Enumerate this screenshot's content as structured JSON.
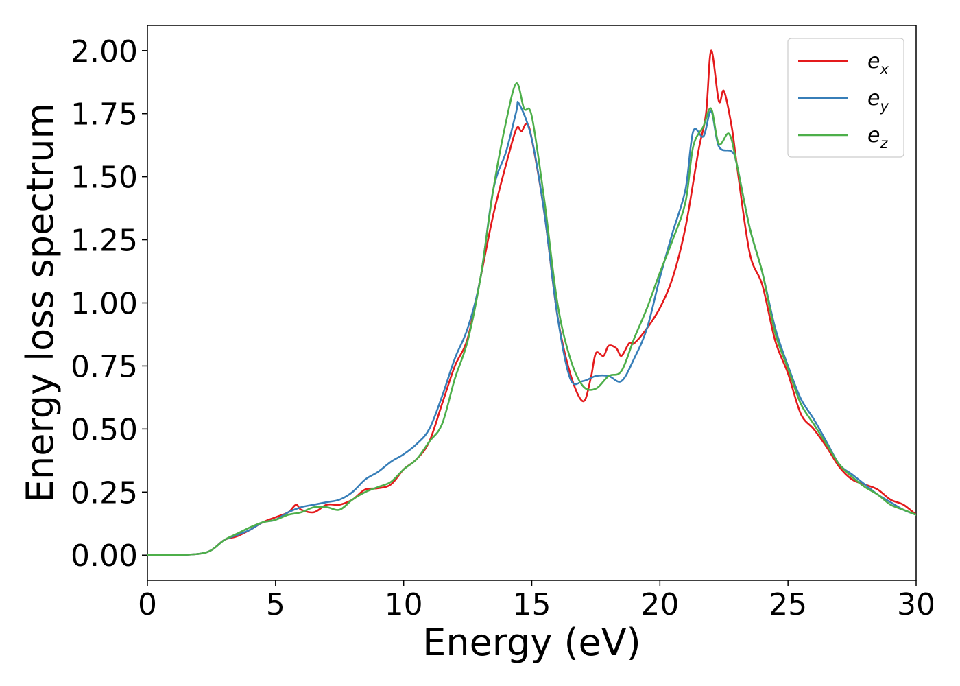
{
  "chart_data": {
    "type": "line",
    "title": "",
    "xlabel": "Energy (eV)",
    "ylabel": "Energy loss spectrum",
    "xlim": [
      0,
      30
    ],
    "ylim": [
      -0.1,
      2.1
    ],
    "xticks": [
      0,
      5,
      10,
      15,
      20,
      25,
      30
    ],
    "xtick_labels": [
      "0",
      "5",
      "10",
      "15",
      "20",
      "25",
      "30"
    ],
    "yticks": [
      0.0,
      0.25,
      0.5,
      0.75,
      1.0,
      1.25,
      1.5,
      1.75,
      2.0
    ],
    "ytick_labels": [
      "0.00",
      "0.25",
      "0.50",
      "0.75",
      "1.00",
      "1.25",
      "1.50",
      "1.75",
      "2.00"
    ],
    "grid": false,
    "legend_position": "top-right",
    "series": [
      {
        "name": "e",
        "subscript": "x",
        "color": "#e41a1c",
        "points": [
          [
            0,
            0.0
          ],
          [
            1,
            0.0
          ],
          [
            2,
            0.005
          ],
          [
            2.5,
            0.02
          ],
          [
            3,
            0.06
          ],
          [
            3.5,
            0.075
          ],
          [
            4,
            0.1
          ],
          [
            4.5,
            0.13
          ],
          [
            5,
            0.15
          ],
          [
            5.5,
            0.17
          ],
          [
            5.8,
            0.2
          ],
          [
            6,
            0.18
          ],
          [
            6.5,
            0.17
          ],
          [
            7,
            0.2
          ],
          [
            7.5,
            0.2
          ],
          [
            8,
            0.22
          ],
          [
            8.5,
            0.26
          ],
          [
            9,
            0.265
          ],
          [
            9.5,
            0.28
          ],
          [
            10,
            0.34
          ],
          [
            10.5,
            0.38
          ],
          [
            11,
            0.45
          ],
          [
            11.5,
            0.6
          ],
          [
            12,
            0.75
          ],
          [
            12.5,
            0.86
          ],
          [
            13,
            1.1
          ],
          [
            13.5,
            1.35
          ],
          [
            14,
            1.55
          ],
          [
            14.4,
            1.69
          ],
          [
            14.6,
            1.68
          ],
          [
            14.8,
            1.71
          ],
          [
            15,
            1.65
          ],
          [
            15.5,
            1.35
          ],
          [
            16,
            0.95
          ],
          [
            16.5,
            0.72
          ],
          [
            17,
            0.61
          ],
          [
            17.3,
            0.7
          ],
          [
            17.5,
            0.8
          ],
          [
            17.8,
            0.79
          ],
          [
            18,
            0.83
          ],
          [
            18.3,
            0.82
          ],
          [
            18.5,
            0.79
          ],
          [
            18.8,
            0.84
          ],
          [
            19,
            0.84
          ],
          [
            19.5,
            0.9
          ],
          [
            20,
            0.98
          ],
          [
            20.5,
            1.1
          ],
          [
            21,
            1.3
          ],
          [
            21.5,
            1.6
          ],
          [
            21.8,
            1.75
          ],
          [
            22,
            2.0
          ],
          [
            22.3,
            1.8
          ],
          [
            22.5,
            1.84
          ],
          [
            22.8,
            1.7
          ],
          [
            23,
            1.55
          ],
          [
            23.5,
            1.2
          ],
          [
            24,
            1.07
          ],
          [
            24.5,
            0.85
          ],
          [
            25,
            0.72
          ],
          [
            25.5,
            0.56
          ],
          [
            26,
            0.5
          ],
          [
            26.5,
            0.43
          ],
          [
            27,
            0.35
          ],
          [
            27.5,
            0.3
          ],
          [
            28,
            0.28
          ],
          [
            28.5,
            0.26
          ],
          [
            29,
            0.22
          ],
          [
            29.5,
            0.2
          ],
          [
            30,
            0.16
          ]
        ]
      },
      {
        "name": "e",
        "subscript": "y",
        "color": "#377eb8",
        "points": [
          [
            0,
            0.0
          ],
          [
            1,
            0.0
          ],
          [
            2,
            0.005
          ],
          [
            2.5,
            0.02
          ],
          [
            3,
            0.06
          ],
          [
            3.5,
            0.08
          ],
          [
            4,
            0.1
          ],
          [
            4.5,
            0.13
          ],
          [
            5,
            0.14
          ],
          [
            5.5,
            0.17
          ],
          [
            6,
            0.19
          ],
          [
            6.5,
            0.2
          ],
          [
            7,
            0.21
          ],
          [
            7.5,
            0.22
          ],
          [
            8,
            0.25
          ],
          [
            8.5,
            0.3
          ],
          [
            9,
            0.33
          ],
          [
            9.5,
            0.37
          ],
          [
            10,
            0.4
          ],
          [
            10.5,
            0.44
          ],
          [
            11,
            0.5
          ],
          [
            11.5,
            0.63
          ],
          [
            12,
            0.78
          ],
          [
            12.5,
            0.9
          ],
          [
            13,
            1.1
          ],
          [
            13.5,
            1.45
          ],
          [
            14,
            1.6
          ],
          [
            14.4,
            1.76
          ],
          [
            14.5,
            1.79
          ],
          [
            15,
            1.65
          ],
          [
            15.5,
            1.35
          ],
          [
            16,
            0.95
          ],
          [
            16.5,
            0.7
          ],
          [
            17,
            0.69
          ],
          [
            17.5,
            0.71
          ],
          [
            18,
            0.71
          ],
          [
            18.5,
            0.69
          ],
          [
            19,
            0.78
          ],
          [
            19.5,
            0.9
          ],
          [
            20,
            1.1
          ],
          [
            20.5,
            1.28
          ],
          [
            21,
            1.45
          ],
          [
            21.3,
            1.68
          ],
          [
            21.7,
            1.66
          ],
          [
            22,
            1.76
          ],
          [
            22.3,
            1.62
          ],
          [
            22.8,
            1.6
          ],
          [
            23,
            1.55
          ],
          [
            23.5,
            1.3
          ],
          [
            24,
            1.12
          ],
          [
            24.5,
            0.9
          ],
          [
            25,
            0.75
          ],
          [
            25.5,
            0.62
          ],
          [
            26,
            0.54
          ],
          [
            26.5,
            0.45
          ],
          [
            27,
            0.36
          ],
          [
            27.5,
            0.32
          ],
          [
            28,
            0.28
          ],
          [
            28.5,
            0.24
          ],
          [
            29,
            0.21
          ],
          [
            29.5,
            0.18
          ],
          [
            30,
            0.16
          ]
        ]
      },
      {
        "name": "e",
        "subscript": "z",
        "color": "#4daf4a",
        "points": [
          [
            0,
            0.0
          ],
          [
            1,
            0.0
          ],
          [
            2,
            0.005
          ],
          [
            2.5,
            0.02
          ],
          [
            3,
            0.06
          ],
          [
            3.5,
            0.085
          ],
          [
            4,
            0.11
          ],
          [
            4.5,
            0.13
          ],
          [
            5,
            0.14
          ],
          [
            5.5,
            0.16
          ],
          [
            6,
            0.17
          ],
          [
            6.5,
            0.19
          ],
          [
            7,
            0.19
          ],
          [
            7.5,
            0.18
          ],
          [
            8,
            0.22
          ],
          [
            8.5,
            0.25
          ],
          [
            9,
            0.27
          ],
          [
            9.5,
            0.29
          ],
          [
            10,
            0.34
          ],
          [
            10.5,
            0.38
          ],
          [
            11,
            0.45
          ],
          [
            11.5,
            0.52
          ],
          [
            12,
            0.7
          ],
          [
            12.5,
            0.85
          ],
          [
            13,
            1.1
          ],
          [
            13.5,
            1.45
          ],
          [
            14,
            1.72
          ],
          [
            14.4,
            1.87
          ],
          [
            14.7,
            1.77
          ],
          [
            15,
            1.74
          ],
          [
            15.5,
            1.4
          ],
          [
            16,
            1.0
          ],
          [
            16.5,
            0.78
          ],
          [
            17,
            0.67
          ],
          [
            17.5,
            0.66
          ],
          [
            18,
            0.71
          ],
          [
            18.5,
            0.73
          ],
          [
            19,
            0.86
          ],
          [
            19.5,
            0.98
          ],
          [
            20,
            1.12
          ],
          [
            20.5,
            1.25
          ],
          [
            21,
            1.4
          ],
          [
            21.3,
            1.62
          ],
          [
            21.7,
            1.7
          ],
          [
            22,
            1.77
          ],
          [
            22.3,
            1.63
          ],
          [
            22.7,
            1.67
          ],
          [
            23,
            1.55
          ],
          [
            23.5,
            1.3
          ],
          [
            24,
            1.12
          ],
          [
            24.5,
            0.88
          ],
          [
            25,
            0.74
          ],
          [
            25.5,
            0.6
          ],
          [
            26,
            0.52
          ],
          [
            26.5,
            0.44
          ],
          [
            27,
            0.36
          ],
          [
            27.5,
            0.31
          ],
          [
            28,
            0.27
          ],
          [
            28.5,
            0.24
          ],
          [
            29,
            0.2
          ],
          [
            29.5,
            0.18
          ],
          [
            30,
            0.16
          ]
        ]
      }
    ]
  }
}
